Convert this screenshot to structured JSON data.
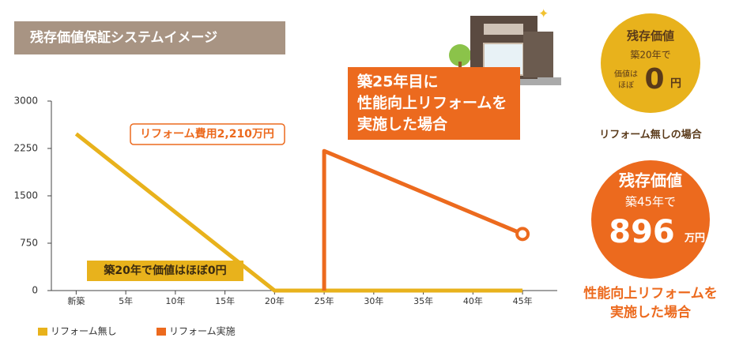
{
  "chart_data": {
    "type": "line",
    "title": "残存価値保証システムイメージ",
    "xlim": [
      -2.5,
      48.5
    ],
    "xticks": [
      {
        "value": 0,
        "label": "新築"
      },
      {
        "value": 5,
        "label": "5年"
      },
      {
        "value": 10,
        "label": "10年"
      },
      {
        "value": 15,
        "label": "15年"
      },
      {
        "value": 20,
        "label": "20年"
      },
      {
        "value": 25,
        "label": "25年"
      },
      {
        "value": 30,
        "label": "30年"
      },
      {
        "value": 35,
        "label": "35年"
      },
      {
        "value": 40,
        "label": "40年"
      },
      {
        "value": 45,
        "label": "45年"
      }
    ],
    "ylim": [
      0,
      3000
    ],
    "yticks": [
      0,
      750,
      1500,
      2250,
      3000
    ],
    "legend": "bottom-left",
    "series": [
      {
        "name": "リフォーム無し",
        "color": "#e8b21c",
        "x": [
          0,
          20,
          45
        ],
        "values": [
          2480,
          0,
          0
        ]
      },
      {
        "name": "リフォーム実施",
        "color": "#ec6a1e",
        "x": [
          25,
          25,
          45
        ],
        "values": [
          0,
          2210,
          896
        ]
      }
    ],
    "annotations": [
      "リフォーム費用2,210万円",
      "築20年で価値はほぼ0円",
      [
        "築25年目に",
        "性能向上リフォームを",
        "実施した場合"
      ]
    ]
  },
  "side_panels": [
    {
      "heading": "残存価値",
      "line": "築20年で",
      "prefix": [
        "価値は",
        "ほぼ"
      ],
      "amount": "0",
      "unit": "円",
      "caption": [
        "リフォーム無しの場合"
      ]
    },
    {
      "heading": "残存価値",
      "line": "築45年で",
      "amount": "896",
      "unit": "万円",
      "caption": [
        "性能向上リフォームを",
        "実施した場合"
      ]
    }
  ]
}
